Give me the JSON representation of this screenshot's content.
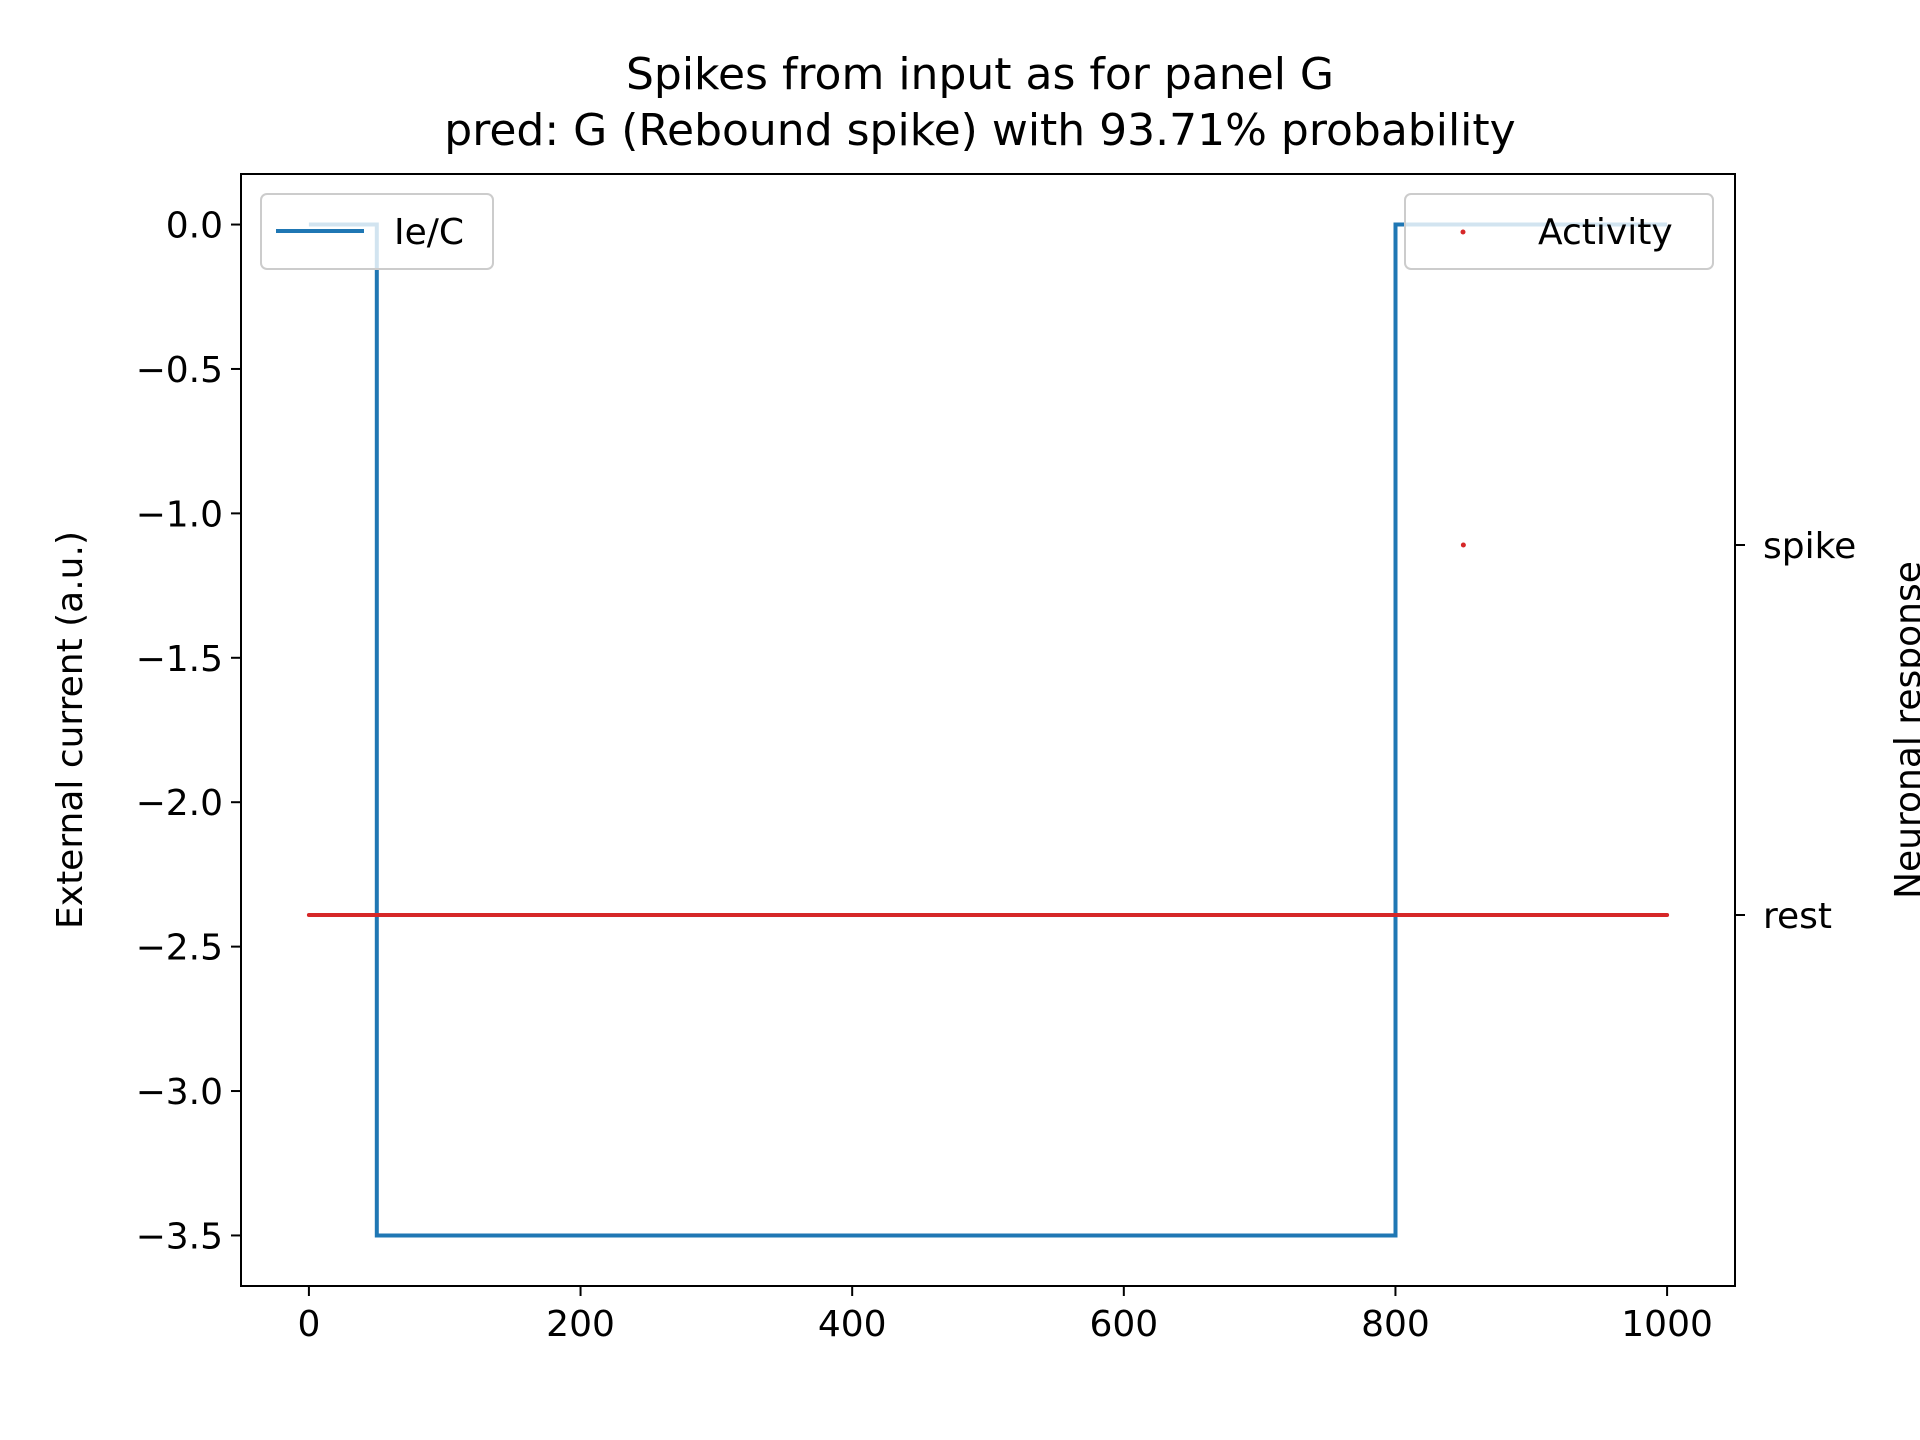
{
  "chart_data": {
    "type": "line",
    "title_line1": "Spikes from input as for panel G",
    "title_line2": "pred: G (Rebound spike) with 93.71% probability",
    "xlabel": "",
    "ylabel": "External current (a.u.)",
    "y2label": "Neuronal response",
    "xlim": [
      -50,
      1050
    ],
    "ylim": [
      -3.675,
      0.175
    ],
    "x_ticks": [
      0,
      200,
      400,
      600,
      800,
      1000
    ],
    "x_tick_labels": [
      "0",
      "200",
      "400",
      "600",
      "800",
      "1000"
    ],
    "y_ticks": [
      0.0,
      -0.5,
      -1.0,
      -1.5,
      -2.0,
      -2.5,
      -3.0,
      -3.5
    ],
    "y_tick_labels": [
      "0.0",
      "−0.5",
      "−1.0",
      "−1.5",
      "−2.0",
      "−2.5",
      "−3.0",
      "−3.5"
    ],
    "y2_tick_labels": [
      "spike",
      "rest"
    ],
    "grid": false,
    "series": [
      {
        "name": "Ie/C",
        "axis": "left",
        "color": "#1f77b4",
        "x": [
          0,
          50,
          50,
          800,
          800,
          1000
        ],
        "y": [
          0.0,
          0.0,
          -3.5,
          -3.5,
          0.0,
          0.0
        ]
      },
      {
        "name": "Activity",
        "axis": "right",
        "color": "#d62728",
        "marker": "point",
        "rest_x_range": [
          0,
          1000
        ],
        "spike_x": [
          850
        ]
      }
    ],
    "legends": [
      {
        "label": "Ie/C",
        "placement": "upper-left"
      },
      {
        "label": "Activity",
        "placement": "upper-right"
      }
    ]
  }
}
